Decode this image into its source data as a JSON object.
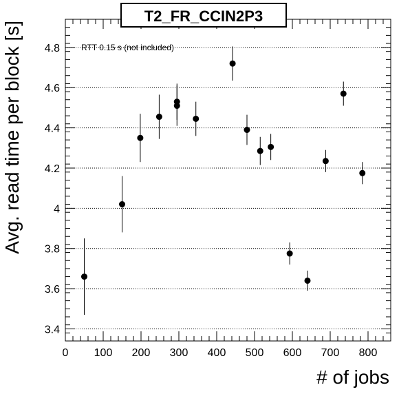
{
  "chart_data": {
    "type": "scatter",
    "title": "T2_FR_CCIN2P3",
    "xlabel": "# of jobs",
    "ylabel": "Avg. read time per block [s]",
    "annotation": "RTT 0.15 s (not included)",
    "xlim": [
      0,
      860
    ],
    "ylim": [
      3.34,
      4.94
    ],
    "x_ticks": [
      0,
      100,
      200,
      300,
      400,
      500,
      600,
      700,
      800
    ],
    "y_ticks": [
      3.4,
      3.6,
      3.8,
      4,
      4.2,
      4.4,
      4.6,
      4.8
    ],
    "y_grid": true,
    "x_grid": false,
    "points": [
      {
        "x": 50,
        "y": 3.66,
        "err": 0.19
      },
      {
        "x": 150,
        "y": 4.02,
        "err": 0.14
      },
      {
        "x": 198,
        "y": 4.35,
        "err": 0.12
      },
      {
        "x": 248,
        "y": 4.455,
        "err": 0.11
      },
      {
        "x": 295,
        "y": 4.53,
        "err": 0.09
      },
      {
        "x": 295,
        "y": 4.51,
        "err": 0.1
      },
      {
        "x": 345,
        "y": 4.445,
        "err": 0.085
      },
      {
        "x": 442,
        "y": 4.72,
        "err": 0.085
      },
      {
        "x": 480,
        "y": 4.39,
        "err": 0.075
      },
      {
        "x": 515,
        "y": 4.285,
        "err": 0.07
      },
      {
        "x": 543,
        "y": 4.305,
        "err": 0.065
      },
      {
        "x": 593,
        "y": 3.775,
        "err": 0.055
      },
      {
        "x": 640,
        "y": 3.64,
        "err": 0.05
      },
      {
        "x": 688,
        "y": 4.235,
        "err": 0.055
      },
      {
        "x": 735,
        "y": 4.57,
        "err": 0.06
      },
      {
        "x": 785,
        "y": 4.175,
        "err": 0.055
      }
    ]
  }
}
